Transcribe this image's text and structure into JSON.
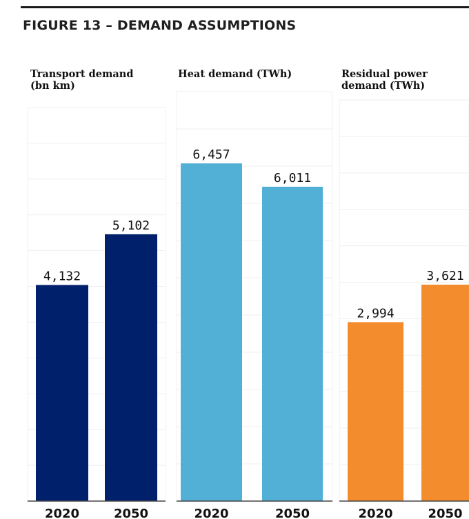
{
  "figure": {
    "title": "FIGURE 13 – DEMAND ASSUMPTIONS"
  },
  "chart_data": [
    {
      "type": "bar",
      "title": "Transport demand\n(bn km)",
      "categories": [
        "2020",
        "2050"
      ],
      "values": [
        4132,
        5102
      ],
      "value_labels": [
        "4,132",
        "5,102"
      ],
      "color": "#00206b",
      "ylim": [
        0,
        8000
      ],
      "grid": true
    },
    {
      "type": "bar",
      "title": "Heat demand (TWh)",
      "categories": [
        "2020",
        "2050"
      ],
      "values": [
        6457,
        6011
      ],
      "value_labels": [
        "6,457",
        "6,011"
      ],
      "color": "#52afd6",
      "ylim": [
        0,
        8000
      ],
      "grid": true
    },
    {
      "type": "bar",
      "title": "Residual power\ndemand (TWh)",
      "categories": [
        "2020",
        "2050"
      ],
      "values": [
        2994,
        3621
      ],
      "value_labels": [
        "2,994",
        "3,621"
      ],
      "color": "#f28c2c",
      "ylim": [
        0,
        7000
      ],
      "grid": true
    }
  ]
}
